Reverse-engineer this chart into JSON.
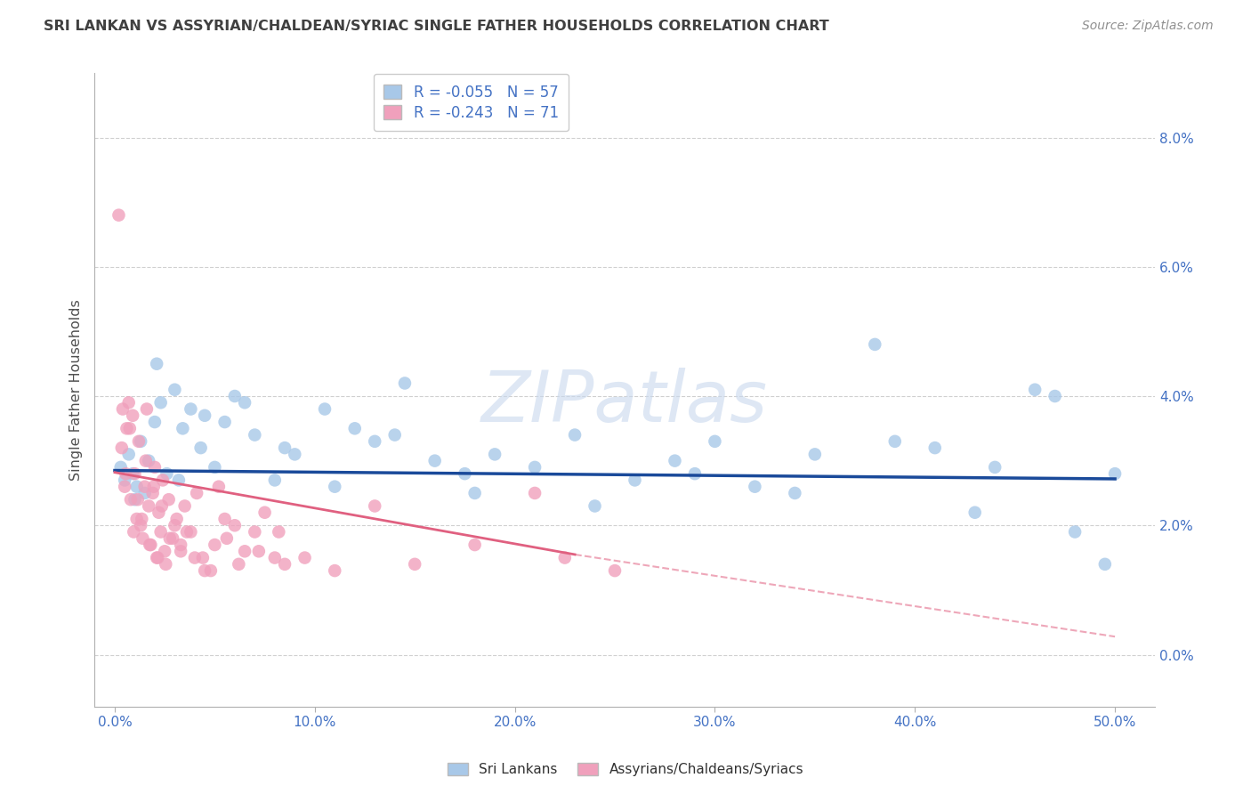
{
  "title": "SRI LANKAN VS ASSYRIAN/CHALDEAN/SYRIAC SINGLE FATHER HOUSEHOLDS CORRELATION CHART",
  "source": "Source: ZipAtlas.com",
  "ylabel": "Single Father Households",
  "xlabel_vals": [
    0.0,
    10.0,
    20.0,
    30.0,
    40.0,
    50.0
  ],
  "ylabel_vals": [
    0.0,
    2.0,
    4.0,
    6.0,
    8.0
  ],
  "xlim": [
    -1.0,
    52.0
  ],
  "ylim": [
    -0.8,
    9.0
  ],
  "blue_R": -0.055,
  "blue_N": 57,
  "pink_R": -0.243,
  "pink_N": 71,
  "legend_label_blue": "Sri Lankans",
  "legend_label_pink": "Assyrians/Chaldeans/Syriacs",
  "blue_color": "#A8C8E8",
  "pink_color": "#F0A0BC",
  "blue_line_color": "#1A4A9A",
  "pink_line_color": "#E06080",
  "watermark_text": "ZIPatlas",
  "background_color": "#FFFFFF",
  "title_color": "#404040",
  "source_color": "#909090",
  "axis_color": "#4472C4",
  "tick_color": "#B0B0B0",
  "grid_color": "#D0D0D0",
  "blue_line_y0": 2.85,
  "blue_line_y50": 2.72,
  "pink_line_y0": 2.82,
  "pink_line_y23": 1.55,
  "pink_dash_y23": 1.55,
  "pink_dash_y50": 0.28,
  "blue_scatter_x": [
    0.3,
    0.5,
    0.7,
    0.9,
    1.1,
    1.3,
    1.5,
    1.7,
    2.0,
    2.3,
    2.6,
    3.0,
    3.4,
    3.8,
    4.3,
    5.0,
    5.5,
    6.0,
    7.0,
    8.0,
    9.0,
    10.5,
    12.0,
    13.0,
    14.5,
    16.0,
    17.5,
    19.0,
    21.0,
    23.0,
    26.0,
    28.0,
    30.0,
    32.0,
    35.0,
    38.0,
    41.0,
    44.0,
    47.0,
    50.0,
    1.0,
    2.1,
    3.2,
    4.5,
    6.5,
    8.5,
    11.0,
    14.0,
    18.0,
    24.0,
    29.0,
    34.0,
    39.0,
    43.0,
    46.0,
    48.0,
    49.5
  ],
  "blue_scatter_y": [
    2.9,
    2.7,
    3.1,
    2.8,
    2.6,
    3.3,
    2.5,
    3.0,
    3.6,
    3.9,
    2.8,
    4.1,
    3.5,
    3.8,
    3.2,
    2.9,
    3.6,
    4.0,
    3.4,
    2.7,
    3.1,
    3.8,
    3.5,
    3.3,
    4.2,
    3.0,
    2.8,
    3.1,
    2.9,
    3.4,
    2.7,
    3.0,
    3.3,
    2.6,
    3.1,
    4.8,
    3.2,
    2.9,
    4.0,
    2.8,
    2.4,
    4.5,
    2.7,
    3.7,
    3.9,
    3.2,
    2.6,
    3.4,
    2.5,
    2.3,
    2.8,
    2.5,
    3.3,
    2.2,
    4.1,
    1.9,
    1.4
  ],
  "pink_scatter_x": [
    0.2,
    0.4,
    0.5,
    0.6,
    0.7,
    0.8,
    0.9,
    1.0,
    1.1,
    1.2,
    1.3,
    1.4,
    1.5,
    1.6,
    1.7,
    1.8,
    1.9,
    2.0,
    2.1,
    2.2,
    2.3,
    2.4,
    2.5,
    2.7,
    2.9,
    3.1,
    3.3,
    3.5,
    3.8,
    4.1,
    4.4,
    4.8,
    5.2,
    5.6,
    6.0,
    6.5,
    7.0,
    7.5,
    8.0,
    8.5,
    0.35,
    0.55,
    0.75,
    0.95,
    1.15,
    1.35,
    1.55,
    1.75,
    1.95,
    2.15,
    2.35,
    2.55,
    2.75,
    3.0,
    3.3,
    3.6,
    4.0,
    4.5,
    5.0,
    5.5,
    6.2,
    7.2,
    8.2,
    9.5,
    11.0,
    13.0,
    15.0,
    18.0,
    21.0,
    22.5,
    25.0
  ],
  "pink_scatter_y": [
    6.8,
    3.8,
    2.6,
    3.5,
    3.9,
    2.4,
    3.7,
    2.8,
    2.1,
    3.3,
    2.0,
    1.8,
    2.6,
    3.8,
    2.3,
    1.7,
    2.5,
    2.9,
    1.5,
    2.2,
    1.9,
    2.7,
    1.6,
    2.4,
    1.8,
    2.1,
    1.7,
    2.3,
    1.9,
    2.5,
    1.5,
    1.3,
    2.6,
    1.8,
    2.0,
    1.6,
    1.9,
    2.2,
    1.5,
    1.4,
    3.2,
    2.8,
    3.5,
    1.9,
    2.4,
    2.1,
    3.0,
    1.7,
    2.6,
    1.5,
    2.3,
    1.4,
    1.8,
    2.0,
    1.6,
    1.9,
    1.5,
    1.3,
    1.7,
    2.1,
    1.4,
    1.6,
    1.9,
    1.5,
    1.3,
    2.3,
    1.4,
    1.7,
    2.5,
    1.5,
    1.3
  ]
}
